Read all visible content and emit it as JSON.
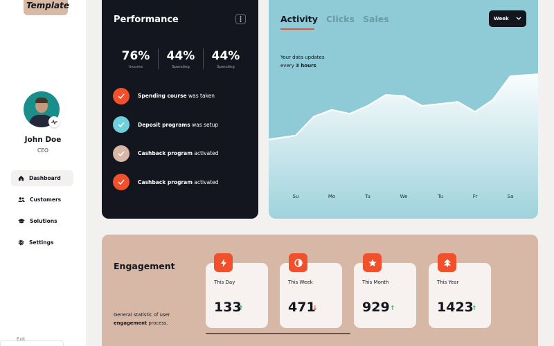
{
  "sidebar": {
    "logo_text": "Template",
    "user": {
      "name": "John Doe",
      "role": "CEO"
    },
    "nav": [
      {
        "label": "Dashboard",
        "icon": "home-icon",
        "active": true
      },
      {
        "label": "Customers",
        "icon": "users-icon",
        "active": false
      },
      {
        "label": "Solutions",
        "icon": "graduation-cap-icon",
        "active": false
      },
      {
        "label": "Settings",
        "icon": "gear-icon",
        "active": false
      }
    ],
    "exit_label": "Exit"
  },
  "performance": {
    "title": "Performance",
    "stats": [
      {
        "value": "76%",
        "label": "Income"
      },
      {
        "value": "44%",
        "label": "Spending"
      },
      {
        "value": "44%",
        "label": "Spending"
      }
    ],
    "tasks": [
      {
        "bold": "Spending course",
        "rest": " was taken",
        "color": "#f0512c"
      },
      {
        "bold": "Deposit programs",
        "rest": " was setup",
        "color": "#6fcfda"
      },
      {
        "bold": "Cashback program",
        "rest": " activated",
        "color": "#d7b8a6"
      },
      {
        "bold": "Cashback program",
        "rest": " activated",
        "color": "#f0512c"
      }
    ]
  },
  "activity": {
    "tabs": [
      "Activity",
      "Clicks",
      "Sales"
    ],
    "active_tab": "Activity",
    "period_select": "Week",
    "note_prefix": "Your data updates",
    "note_mid": "every ",
    "note_bold": "3 hours",
    "chart_data": {
      "type": "area",
      "x": [
        "Su",
        "Mo",
        "Tu",
        "We",
        "Tu",
        "Fr",
        "Sa"
      ],
      "values": [
        42,
        55,
        57,
        62,
        58,
        54,
        72
      ],
      "ylim": [
        0,
        100
      ]
    }
  },
  "engagement": {
    "title": "Engagement",
    "desc_prefix": "General statistic of user",
    "desc_bold": "engagement",
    "desc_suffix": " process.",
    "cards": [
      {
        "label": "This Day",
        "value": "133",
        "trend": "up",
        "icon": "lightning-icon"
      },
      {
        "label": "This Week",
        "value": "471",
        "trend": "down",
        "icon": "half-circle-icon"
      },
      {
        "label": "This Month",
        "value": "929",
        "trend": "up",
        "icon": "star-icon"
      },
      {
        "label": "This Year",
        "value": "1423",
        "trend": "up",
        "icon": "double-chevron-up-icon"
      }
    ],
    "colors": {
      "up": "#2bb35e",
      "down": "#e0503a",
      "accent": "#f0512c"
    }
  }
}
